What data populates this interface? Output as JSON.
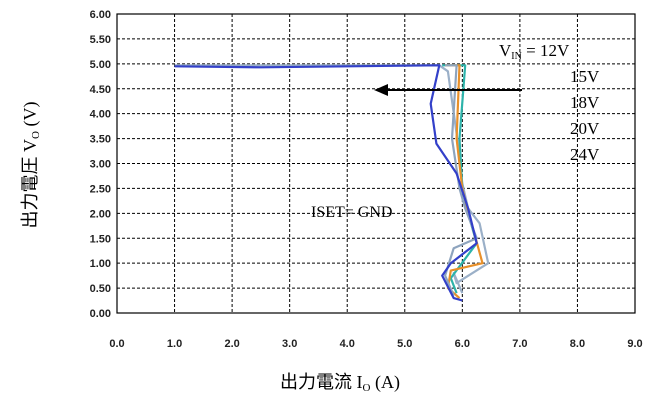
{
  "chart_data": {
    "type": "line",
    "xlabel": {
      "main": "出力電流 I",
      "sub": "O",
      "unit": " (A)"
    },
    "ylabel": {
      "main": "出力電圧 V",
      "sub": "O",
      "unit": " (V)"
    },
    "xlim": [
      0,
      9
    ],
    "ylim": [
      0,
      6
    ],
    "xticks": [
      "0.0",
      "1.0",
      "2.0",
      "3.0",
      "4.0",
      "5.0",
      "6.0",
      "7.0",
      "8.0",
      "9.0"
    ],
    "yticks": [
      "0.00",
      "0.50",
      "1.00",
      "1.50",
      "2.00",
      "2.50",
      "3.00",
      "3.50",
      "4.00",
      "4.50",
      "5.00",
      "5.50",
      "6.00"
    ],
    "grid": true,
    "vin_prefix": "V",
    "vin_sub": "IN",
    "vin_eq": " = ",
    "vin_values": [
      "12V",
      "15V",
      "18V",
      "20V",
      "24V"
    ],
    "annotation": "ISET= GND",
    "series": [
      {
        "color": "#9bb0c8",
        "points": [
          [
            1.0,
            4.97
          ],
          [
            5.6,
            4.97
          ],
          [
            5.75,
            4.85
          ],
          [
            5.9,
            3.6
          ],
          [
            6.0,
            2.6
          ],
          [
            6.1,
            2.1
          ],
          [
            6.3,
            1.8
          ],
          [
            6.45,
            1.0
          ],
          [
            5.9,
            0.6
          ],
          [
            5.85,
            0.8
          ],
          [
            6.0,
            0.4
          ]
        ]
      },
      {
        "color": "#2db3aa",
        "points": [
          [
            5.65,
            4.97
          ],
          [
            6.05,
            4.97
          ],
          [
            5.95,
            3.5
          ],
          [
            6.0,
            2.5
          ],
          [
            6.1,
            2.0
          ],
          [
            6.25,
            1.4
          ],
          [
            5.8,
            0.7
          ],
          [
            5.9,
            0.4
          ]
        ]
      },
      {
        "color": "#e8902a",
        "points": [
          [
            5.7,
            4.97
          ],
          [
            5.95,
            4.97
          ],
          [
            5.9,
            3.5
          ],
          [
            6.0,
            2.5
          ],
          [
            6.1,
            2.05
          ],
          [
            6.35,
            1.0
          ],
          [
            5.8,
            0.85
          ],
          [
            5.75,
            0.5
          ],
          [
            5.95,
            0.3
          ]
        ]
      },
      {
        "color": "#8ea4be",
        "points": [
          [
            5.7,
            4.97
          ],
          [
            5.9,
            4.97
          ],
          [
            5.82,
            3.5
          ],
          [
            5.95,
            2.5
          ],
          [
            6.05,
            2.1
          ],
          [
            6.25,
            1.5
          ],
          [
            5.85,
            1.3
          ],
          [
            5.7,
            0.75
          ],
          [
            5.85,
            0.35
          ]
        ]
      },
      {
        "color": "#3340c9",
        "points": [
          [
            1.0,
            4.95
          ],
          [
            2.5,
            4.93
          ],
          [
            5.6,
            4.97
          ],
          [
            5.45,
            4.2
          ],
          [
            5.55,
            3.4
          ],
          [
            5.9,
            2.8
          ],
          [
            6.1,
            2.1
          ],
          [
            6.25,
            1.4
          ],
          [
            5.8,
            1.0
          ],
          [
            5.65,
            0.75
          ],
          [
            5.85,
            0.3
          ],
          [
            6.0,
            0.25
          ]
        ]
      }
    ]
  }
}
